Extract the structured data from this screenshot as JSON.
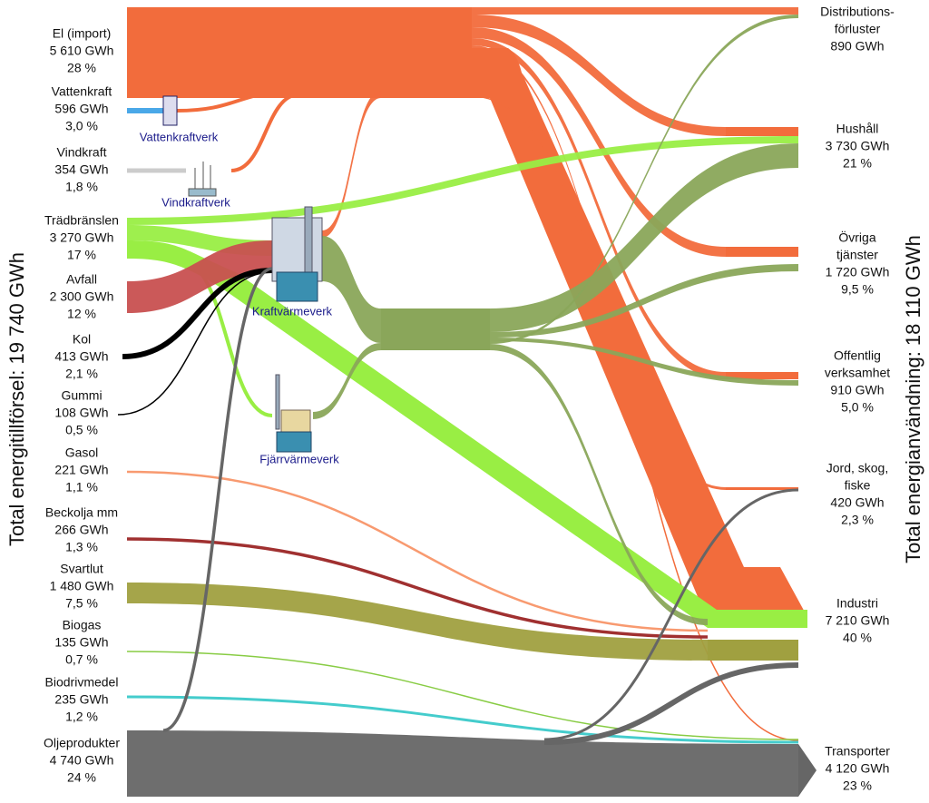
{
  "title_left": "Total energitillförsel: 19 740 GWh",
  "title_right": "Total energianvändning: 18 110 GWh",
  "sources": [
    {
      "lines": [
        "El (import)",
        "5 610 GWh",
        "28 %"
      ]
    },
    {
      "lines": [
        "Vattenkraft",
        "596 GWh",
        "3,0 %"
      ]
    },
    {
      "lines": [
        "Vindkraft",
        "354 GWh",
        "1,8 %"
      ]
    },
    {
      "lines": [
        "Trädbränslen",
        "3 270 GWh",
        "17 %"
      ]
    },
    {
      "lines": [
        "Avfall",
        "2 300 GWh",
        "12 %"
      ]
    },
    {
      "lines": [
        "Kol",
        "413 GWh",
        "2,1 %"
      ]
    },
    {
      "lines": [
        "Gummi",
        "108 GWh",
        "0,5 %"
      ]
    },
    {
      "lines": [
        "Gasol",
        "221 GWh",
        "1,1 %"
      ]
    },
    {
      "lines": [
        "Beckolja mm",
        "266 GWh",
        "1,3 %"
      ]
    },
    {
      "lines": [
        "Svartlut",
        "1 480 GWh",
        "7,5 %"
      ]
    },
    {
      "lines": [
        "Biogas",
        "135 GWh",
        "0,7 %"
      ]
    },
    {
      "lines": [
        "Biodrivmedel",
        "235 GWh",
        "1,2 %"
      ]
    },
    {
      "lines": [
        "Oljeprodukter",
        "4 740 GWh",
        "24 %"
      ]
    }
  ],
  "targets": [
    {
      "lines": [
        "Distributions-",
        "förluster",
        "890 GWh"
      ]
    },
    {
      "lines": [
        "Hushåll",
        "3 730 GWh",
        "21 %"
      ]
    },
    {
      "lines": [
        "Övriga",
        "tjänster",
        "1 720 GWh",
        "9,5 %"
      ]
    },
    {
      "lines": [
        "Offentlig",
        "verksamhet",
        "910 GWh",
        "5,0 %"
      ]
    },
    {
      "lines": [
        "Jord, skog,",
        "fiske",
        "420 GWh",
        "2,3 %"
      ]
    },
    {
      "lines": [
        "Industri",
        "7 210 GWh",
        "40 %"
      ]
    },
    {
      "lines": [
        "Transporter",
        "4 120 GWh",
        "23 %"
      ]
    }
  ],
  "plants": [
    "Vattenkraftverk",
    "Vindkraftverk",
    "Kraftvärmeverk",
    "Fjärrvärmeverk"
  ]
}
